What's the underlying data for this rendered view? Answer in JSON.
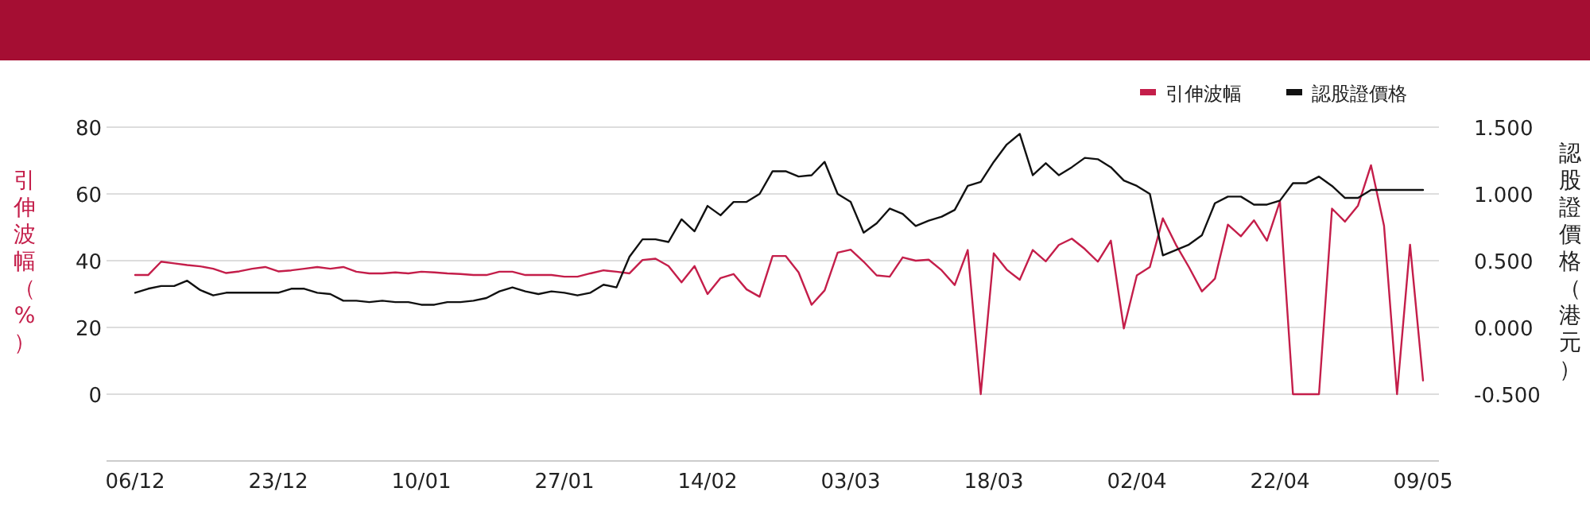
{
  "chart_data": {
    "type": "line",
    "ylabel": "引伸波幅（%）",
    "y2label": "認股證價格（港元）",
    "categories": [
      "06/12",
      null,
      null,
      null,
      null,
      null,
      null,
      null,
      null,
      null,
      null,
      "23/12",
      null,
      null,
      null,
      null,
      null,
      null,
      null,
      null,
      null,
      null,
      "10/01",
      null,
      null,
      null,
      null,
      null,
      null,
      null,
      null,
      null,
      null,
      "27/01",
      null,
      null,
      null,
      null,
      null,
      null,
      null,
      null,
      null,
      null,
      "14/02",
      null,
      null,
      null,
      null,
      null,
      null,
      null,
      null,
      null,
      null,
      "03/03",
      null,
      null,
      null,
      null,
      null,
      null,
      null,
      null,
      null,
      null,
      "18/03",
      null,
      null,
      null,
      null,
      null,
      null,
      null,
      null,
      null,
      null,
      "02/04",
      null,
      null,
      null,
      null,
      null,
      null,
      null,
      null,
      null,
      null,
      "22/04",
      null,
      null,
      null,
      null,
      null,
      null,
      null,
      null,
      null,
      null,
      "09/05"
    ],
    "series": [
      {
        "name": "引伸波幅",
        "color": "#c41e4a",
        "values": [
          35.7,
          35.7,
          39.7,
          39.2,
          38.7,
          38.3,
          37.6,
          36.3,
          36.8,
          37.6,
          38.1,
          36.8,
          37.1,
          37.6,
          38.1,
          37.6,
          38.1,
          36.7,
          36.2,
          36.2,
          36.5,
          36.2,
          36.7,
          36.5,
          36.2,
          36.0,
          35.7,
          35.7,
          36.7,
          36.7,
          35.7,
          35.7,
          35.7,
          35.2,
          35.2,
          36.2,
          37.1,
          36.7,
          36.2,
          40.2,
          40.6,
          38.4,
          33.5,
          38.4,
          30.0,
          34.8,
          36.0,
          31.4,
          29.2,
          41.4,
          41.4,
          36.5,
          26.8,
          31.1,
          42.4,
          43.3,
          39.7,
          35.6,
          35.2,
          41.0,
          40.0,
          40.3,
          37.1,
          32.7,
          43.2,
          0.0,
          42.2,
          37.3,
          34.3,
          43.2,
          39.8,
          44.7,
          46.6,
          43.5,
          39.7,
          46.0,
          19.7,
          35.6,
          38.1,
          52.7,
          44.8,
          38.1,
          30.8,
          34.6,
          50.8,
          47.3,
          52.1,
          46.0,
          57.8,
          0.0,
          0.0,
          0.0,
          55.6,
          51.7,
          56.5,
          68.6,
          50.5,
          0.0,
          44.8,
          4.1
        ]
      },
      {
        "name": "認股證價格",
        "color": "#111111",
        "axis": "y2",
        "values": [
          0.26,
          0.29,
          0.31,
          0.31,
          0.35,
          0.28,
          0.24,
          0.26,
          0.26,
          0.26,
          0.26,
          0.26,
          0.29,
          0.29,
          0.26,
          0.25,
          0.2,
          0.2,
          0.19,
          0.2,
          0.19,
          0.19,
          0.17,
          0.17,
          0.19,
          0.19,
          0.2,
          0.22,
          0.27,
          0.3,
          0.27,
          0.25,
          0.27,
          0.26,
          0.24,
          0.26,
          0.32,
          0.3,
          0.53,
          0.66,
          0.66,
          0.64,
          0.81,
          0.72,
          0.91,
          0.84,
          0.94,
          0.94,
          1.0,
          1.17,
          1.17,
          1.13,
          1.14,
          1.24,
          1.0,
          0.94,
          0.71,
          0.78,
          0.89,
          0.85,
          0.76,
          0.8,
          0.83,
          0.88,
          1.06,
          1.09,
          1.24,
          1.37,
          1.45,
          1.14,
          1.23,
          1.14,
          1.2,
          1.27,
          1.26,
          1.2,
          1.1,
          1.06,
          1.0,
          0.54,
          0.58,
          0.62,
          0.69,
          0.93,
          0.98,
          0.98,
          0.92,
          0.92,
          0.95,
          1.08,
          1.08,
          1.13,
          1.06,
          0.97,
          0.97,
          1.03,
          1.03,
          1.03,
          1.03,
          1.03
        ]
      }
    ],
    "ylim": [
      -20,
      80
    ],
    "yticks": [
      0,
      20,
      40,
      60,
      80
    ],
    "y2lim": [
      -1.0,
      1.5
    ],
    "y2ticks": [
      {
        "value": -0.5,
        "label": "-0.500"
      },
      {
        "value": 0,
        "label": "0.000"
      },
      {
        "value": 0.5,
        "label": "0.500"
      },
      {
        "value": 1.0,
        "label": "1.000"
      },
      {
        "value": 1.5,
        "label": "1.500"
      }
    ],
    "grid": "y",
    "legend": "top right",
    "marker": "none",
    "line_style": "solid"
  }
}
